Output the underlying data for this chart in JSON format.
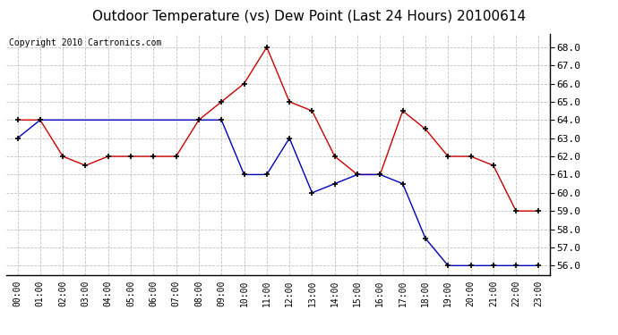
{
  "title": "Outdoor Temperature (vs) Dew Point (Last 24 Hours) 20100614",
  "copyright_text": "Copyright 2010 Cartronics.com",
  "x_labels": [
    "00:00",
    "01:00",
    "02:00",
    "03:00",
    "04:00",
    "05:00",
    "06:00",
    "07:00",
    "08:00",
    "09:00",
    "10:00",
    "11:00",
    "12:00",
    "13:00",
    "14:00",
    "15:00",
    "16:00",
    "17:00",
    "18:00",
    "19:00",
    "20:00",
    "21:00",
    "22:00",
    "23:00"
  ],
  "temp_data": [
    64.0,
    64.0,
    62.0,
    61.5,
    62.0,
    62.0,
    62.0,
    62.0,
    64.0,
    65.0,
    66.0,
    68.0,
    65.0,
    64.5,
    62.0,
    61.0,
    61.0,
    64.5,
    63.5,
    62.0,
    62.0,
    61.5,
    59.0,
    59.0
  ],
  "dew_data": [
    63.0,
    64.0,
    null,
    null,
    null,
    null,
    null,
    null,
    64.0,
    64.0,
    61.0,
    61.0,
    63.0,
    60.0,
    60.5,
    61.0,
    61.0,
    60.5,
    57.5,
    56.0,
    56.0,
    56.0,
    56.0,
    56.0
  ],
  "ylim": [
    55.5,
    68.75
  ],
  "yticks": [
    56.0,
    57.0,
    58.0,
    59.0,
    60.0,
    61.0,
    62.0,
    63.0,
    64.0,
    65.0,
    66.0,
    67.0,
    68.0
  ],
  "temp_color": "#cc0000",
  "dew_color": "#0000bb",
  "bg_color": "#ffffff",
  "plot_bg": "#ffffff",
  "grid_color": "#bbbbbb",
  "title_fontsize": 11,
  "copyright_fontsize": 7
}
